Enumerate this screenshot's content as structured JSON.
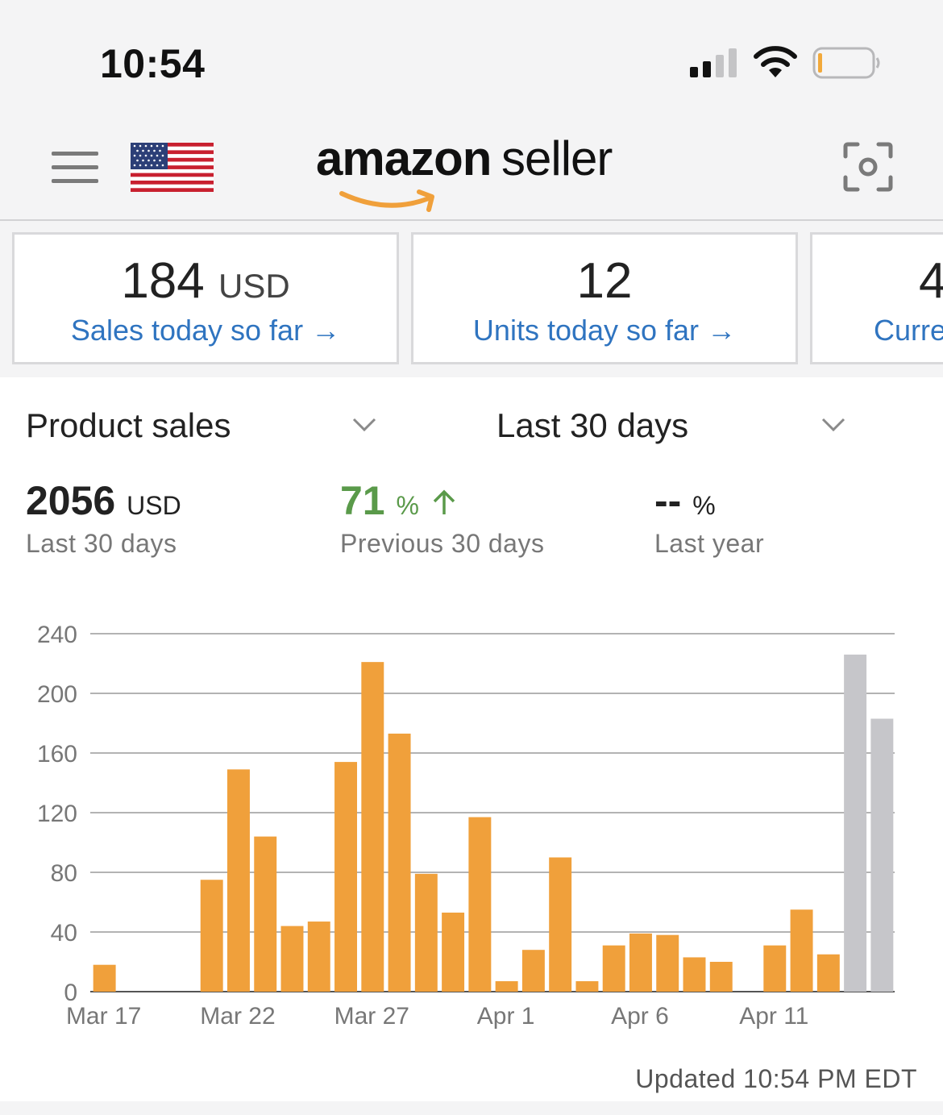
{
  "status_bar": {
    "time": "10:54"
  },
  "header": {
    "logo_amazon": "amazon",
    "logo_seller": "seller"
  },
  "cards": [
    {
      "value": "184",
      "unit": "USD",
      "label": "Sales today so far"
    },
    {
      "value": "12",
      "unit": "",
      "label": "Units today so far"
    },
    {
      "value": "4",
      "unit": "",
      "label": "Curre"
    }
  ],
  "filters": {
    "metric": "Product sales",
    "period": "Last 30 days"
  },
  "summary": {
    "current": {
      "value": "2056",
      "unit": "USD",
      "label": "Last 30 days"
    },
    "previous": {
      "value": "71",
      "unit": "%",
      "label": "Previous 30 days"
    },
    "last_year": {
      "value": "--",
      "unit": "%",
      "label": "Last year"
    }
  },
  "colors": {
    "accent": "#f0a03b",
    "link": "#2f74c0",
    "positive": "#5a9a4a",
    "projected": "#c6c6ca"
  },
  "chart_data": {
    "type": "bar",
    "y_ticks": [
      "240",
      "200",
      "160",
      "120",
      "80",
      "40",
      "0"
    ],
    "ylim": [
      0,
      240
    ],
    "x_tick_labels": [
      "Mar 17",
      "Mar 22",
      "Mar 27",
      "Apr 1",
      "Apr 6",
      "Apr 11"
    ],
    "x_tick_indices": [
      0,
      5,
      10,
      15,
      20,
      25
    ],
    "categories": [
      "Mar 17",
      "Mar 18",
      "Mar 19",
      "Mar 20",
      "Mar 21",
      "Mar 22",
      "Mar 23",
      "Mar 24",
      "Mar 25",
      "Mar 26",
      "Mar 27",
      "Mar 28",
      "Mar 29",
      "Mar 30",
      "Mar 31",
      "Apr 1",
      "Apr 2",
      "Apr 3",
      "Apr 4",
      "Apr 5",
      "Apr 6",
      "Apr 7",
      "Apr 8",
      "Apr 9",
      "Apr 10",
      "Apr 11",
      "Apr 12",
      "Apr 13",
      "Apr 14",
      "Apr 15"
    ],
    "values": [
      18,
      0,
      0,
      0,
      75,
      149,
      104,
      44,
      47,
      154,
      221,
      173,
      79,
      53,
      117,
      7,
      28,
      90,
      7,
      31,
      39,
      38,
      23,
      20,
      0,
      31,
      55,
      25,
      226,
      183
    ],
    "projected_from_index": 28
  },
  "footer": {
    "updated": "Updated 10:54 PM EDT"
  }
}
